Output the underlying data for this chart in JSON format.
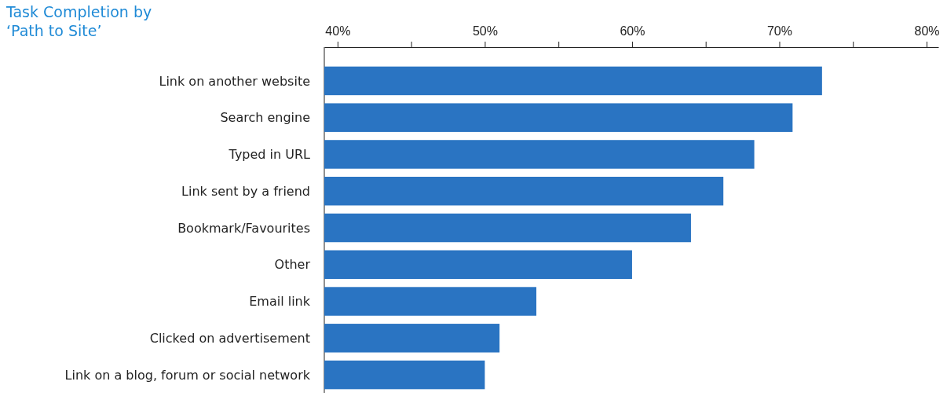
{
  "chart_data": {
    "type": "bar",
    "orientation": "horizontal",
    "title": "Task Completion by ‘Path to Site’",
    "categories": [
      "Link on another website",
      "Search engine",
      "Typed in URL",
      "Link sent by a friend",
      "Bookmark/Favourites",
      "Other",
      "Email link",
      "Clicked on advertisement",
      "Link on a blog, forum or social network"
    ],
    "values": [
      72.9,
      70.9,
      68.3,
      66.2,
      64.0,
      60.0,
      53.5,
      51.0,
      50.0
    ],
    "color": "#2a74c2",
    "xlim": [
      39.1,
      80.8
    ],
    "xticks": [
      {
        "value": 40,
        "label": "40%"
      },
      {
        "value": 45,
        "label": null
      },
      {
        "value": 50,
        "label": "50%"
      },
      {
        "value": 55,
        "label": null
      },
      {
        "value": 60,
        "label": "60%"
      },
      {
        "value": 65,
        "label": null
      },
      {
        "value": 70,
        "label": "70%"
      },
      {
        "value": 75,
        "label": null
      },
      {
        "value": 80,
        "label": "80%"
      }
    ],
    "grid": false
  }
}
